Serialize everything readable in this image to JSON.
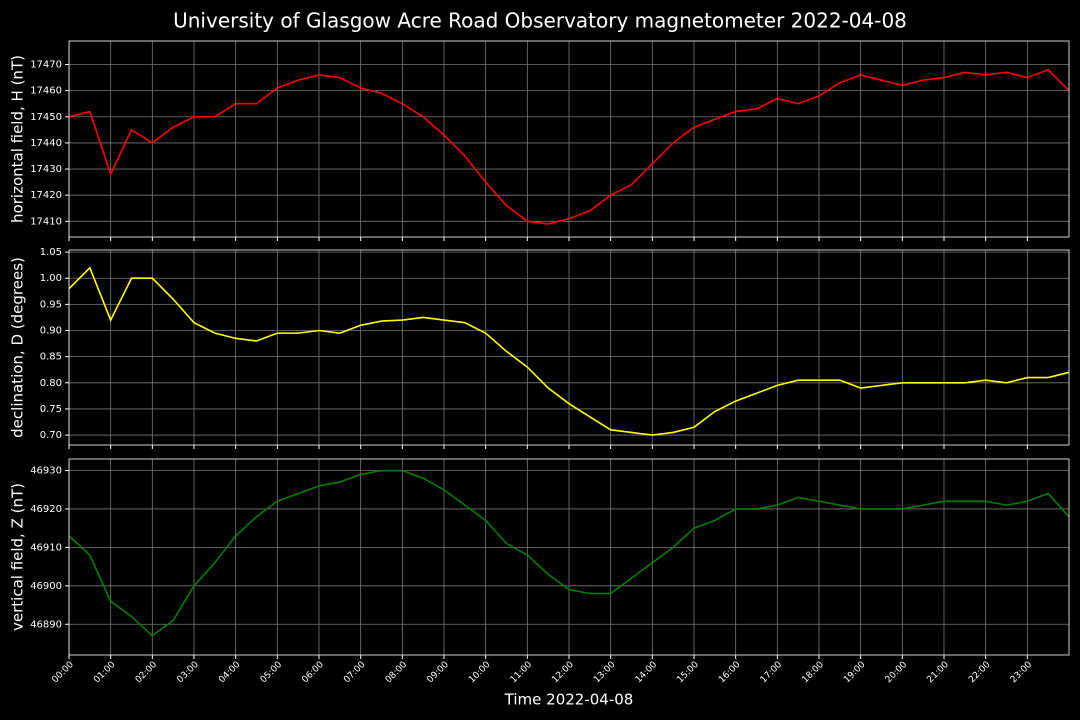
{
  "title": "University of Glasgow Acre Road Observatory magnetometer 2022-04-08",
  "chart_data": [
    {
      "type": "line",
      "ylabel": "horizontal field, H (nT)",
      "color": "#ff0000",
      "grid": true,
      "x": [
        0,
        0.5,
        1,
        1.5,
        2,
        2.5,
        3,
        3.5,
        4,
        4.5,
        5,
        5.5,
        6,
        6.5,
        7,
        7.5,
        8,
        8.5,
        9,
        9.5,
        10,
        10.5,
        11,
        11.5,
        12,
        12.5,
        13,
        13.5,
        14,
        14.5,
        15,
        15.5,
        16,
        16.5,
        17,
        17.5,
        18,
        18.5,
        19,
        19.5,
        20,
        20.5,
        21,
        21.5,
        22,
        22.5,
        23,
        23.5,
        24
      ],
      "values": [
        17450,
        17452,
        17428,
        17445,
        17440,
        17446,
        17450,
        17450,
        17455,
        17455,
        17461,
        17464,
        17466,
        17465,
        17461,
        17459,
        17455,
        17450,
        17443,
        17435,
        17425,
        17416,
        17410,
        17409,
        17411,
        17414,
        17420,
        17424,
        17432,
        17440,
        17446,
        17449,
        17452,
        17453,
        17457,
        17455,
        17458,
        17463,
        17466,
        17464,
        17462,
        17464,
        17465,
        17467,
        17466,
        17467,
        17465,
        17468,
        17460
      ],
      "xlim": [
        0,
        24
      ],
      "ylim": [
        17404,
        17479
      ],
      "yticks": [
        17410,
        17420,
        17430,
        17440,
        17450,
        17460,
        17470
      ]
    },
    {
      "type": "line",
      "ylabel": "declination, D (degrees)",
      "color": "#ffff00",
      "grid": true,
      "x": [
        0,
        0.5,
        1,
        1.5,
        2,
        2.5,
        3,
        3.5,
        4,
        4.5,
        5,
        5.5,
        6,
        6.5,
        7,
        7.5,
        8,
        8.5,
        9,
        9.5,
        10,
        10.5,
        11,
        11.5,
        12,
        12.5,
        13,
        13.5,
        14,
        14.5,
        15,
        15.5,
        16,
        16.5,
        17,
        17.5,
        18,
        18.5,
        19,
        19.5,
        20,
        20.5,
        21,
        21.5,
        22,
        22.5,
        23,
        23.5,
        24
      ],
      "values": [
        0.98,
        1.02,
        0.92,
        1.0,
        1.0,
        0.96,
        0.915,
        0.895,
        0.885,
        0.88,
        0.895,
        0.895,
        0.9,
        0.895,
        0.91,
        0.918,
        0.92,
        0.925,
        0.92,
        0.915,
        0.895,
        0.86,
        0.83,
        0.79,
        0.76,
        0.735,
        0.71,
        0.705,
        0.7,
        0.705,
        0.715,
        0.745,
        0.765,
        0.78,
        0.795,
        0.805,
        0.805,
        0.805,
        0.79,
        0.795,
        0.8,
        0.8,
        0.8,
        0.8,
        0.805,
        0.8,
        0.81,
        0.81,
        0.82
      ],
      "xlim": [
        0,
        24
      ],
      "ylim": [
        0.681,
        1.054
      ],
      "yticks": [
        {
          "value": 0.7,
          "label": "0.70"
        },
        0.75,
        {
          "value": 0.8,
          "label": "0.80"
        },
        0.85,
        {
          "value": 0.9,
          "label": "0.90"
        },
        0.95,
        {
          "value": 1.0,
          "label": "1.00"
        },
        1.05
      ]
    },
    {
      "type": "line",
      "ylabel": "vertical field, Z (nT)",
      "xlabel": "Time 2022-04-08",
      "color": "#008000",
      "grid": true,
      "x": [
        0,
        0.5,
        1,
        1.5,
        2,
        2.5,
        3,
        3.5,
        4,
        4.5,
        5,
        5.5,
        6,
        6.5,
        7,
        7.5,
        8,
        8.5,
        9,
        9.5,
        10,
        10.5,
        11,
        11.5,
        12,
        12.5,
        13,
        13.5,
        14,
        14.5,
        15,
        15.5,
        16,
        16.5,
        17,
        17.5,
        18,
        18.5,
        19,
        19.5,
        20,
        20.5,
        21,
        21.5,
        22,
        22.5,
        23,
        23.5,
        24
      ],
      "values": [
        46913,
        46908,
        46896,
        46892,
        46887,
        46891,
        46900,
        46906,
        46913,
        46918,
        46922,
        46924,
        46926,
        46927,
        46929,
        46930,
        46930,
        46928,
        46925,
        46921,
        46917,
        46911,
        46908,
        46903,
        46899,
        46898,
        46898,
        46902,
        46906,
        46910,
        46915,
        46917,
        46920,
        46920,
        46921,
        46923,
        46922,
        46921,
        46920,
        46920,
        46920,
        46921,
        46922,
        46922,
        46922,
        46921,
        46922,
        46924,
        46918
      ],
      "xlim": [
        0,
        24
      ],
      "ylim": [
        46882,
        46933
      ],
      "yticks": [
        46890,
        46900,
        46910,
        46920,
        46930
      ],
      "xticks": [
        {
          "value": 0,
          "label": "00:00"
        },
        {
          "value": 1,
          "label": "01:00"
        },
        {
          "value": 2,
          "label": "02:00"
        },
        {
          "value": 3,
          "label": "03:00"
        },
        {
          "value": 4,
          "label": "04:00"
        },
        {
          "value": 5,
          "label": "05:00"
        },
        {
          "value": 6,
          "label": "06:00"
        },
        {
          "value": 7,
          "label": "07:00"
        },
        {
          "value": 8,
          "label": "08:00"
        },
        {
          "value": 9,
          "label": "09:00"
        },
        {
          "value": 10,
          "label": "10:00"
        },
        {
          "value": 11,
          "label": "11:00"
        },
        {
          "value": 12,
          "label": "12:00"
        },
        {
          "value": 13,
          "label": "13:00"
        },
        {
          "value": 14,
          "label": "14:00"
        },
        {
          "value": 15,
          "label": "15:00"
        },
        {
          "value": 16,
          "label": "16:00"
        },
        {
          "value": 17,
          "label": "17:00"
        },
        {
          "value": 18,
          "label": "18:00"
        },
        {
          "value": 19,
          "label": "19:00"
        },
        {
          "value": 20,
          "label": "20:00"
        },
        {
          "value": 21,
          "label": "21:00"
        },
        {
          "value": 22,
          "label": "22:00"
        },
        {
          "value": 23,
          "label": "23:00"
        }
      ]
    }
  ]
}
